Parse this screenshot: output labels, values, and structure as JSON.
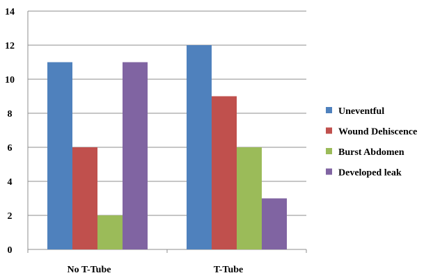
{
  "chart_data": {
    "type": "bar",
    "categories": [
      "No T-Tube",
      "T-Tube"
    ],
    "series": [
      {
        "name": "Uneventful",
        "values": [
          11,
          12
        ],
        "color": "#4f81bd"
      },
      {
        "name": "Wound Dehiscence",
        "values": [
          6,
          9
        ],
        "color": "#c0504d"
      },
      {
        "name": "Burst Abdomen",
        "values": [
          2,
          6
        ],
        "color": "#9bbb59"
      },
      {
        "name": "Developed leak",
        "values": [
          11,
          3
        ],
        "color": "#8064a2"
      }
    ],
    "title": "",
    "xlabel": "",
    "ylabel": "",
    "ylim": [
      0,
      14
    ],
    "yticks": [
      "0",
      "2",
      "4",
      "6",
      "8",
      "10",
      "12",
      "14"
    ],
    "grid": true,
    "legend_position": "right"
  }
}
